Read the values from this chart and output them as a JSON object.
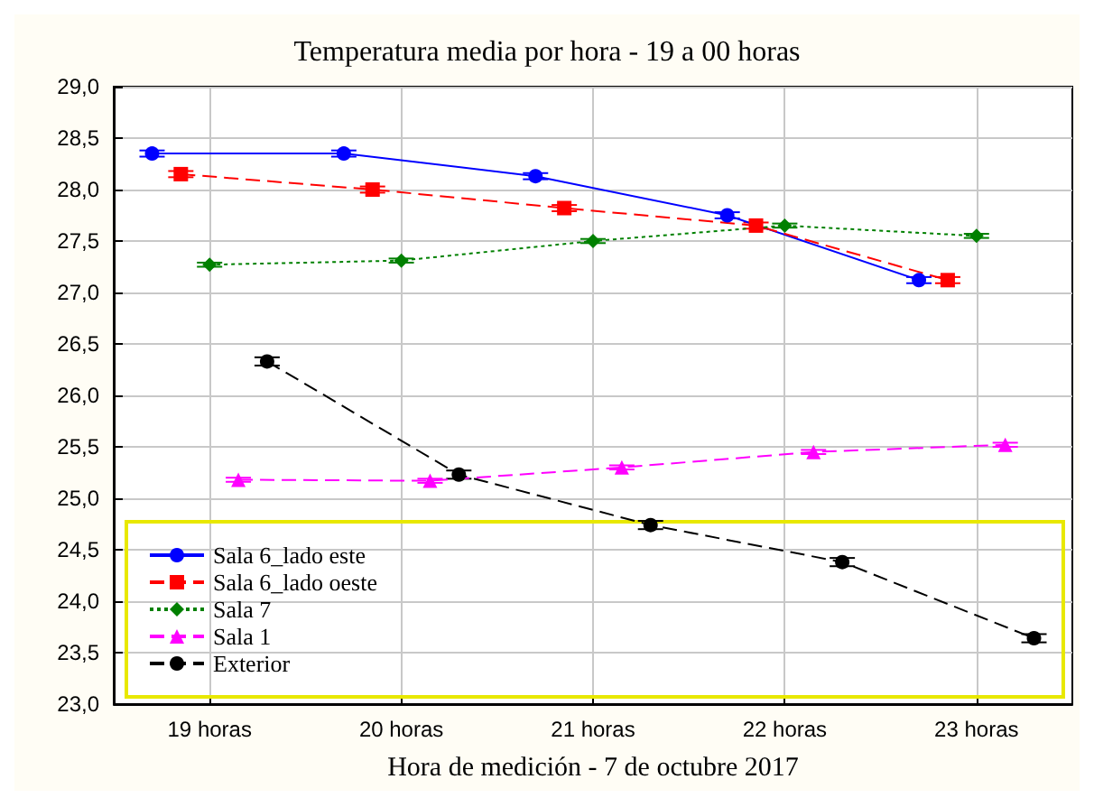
{
  "chart_data": {
    "type": "line",
    "title": "Temperatura media por hora - 19 a 00 horas",
    "xlabel": "Hora de medición - 7 de octubre 2017",
    "xlim": [
      18.5,
      23.5
    ],
    "xticks": [
      {
        "value": 19,
        "label": "19 horas"
      },
      {
        "value": 20,
        "label": "20 horas"
      },
      {
        "value": 21,
        "label": "21 horas"
      },
      {
        "value": 22,
        "label": "22 horas"
      },
      {
        "value": 23,
        "label": "23 horas"
      }
    ],
    "ylim": [
      23,
      29
    ],
    "yticks": [
      {
        "value": 23,
        "label": "23,0"
      },
      {
        "value": 23.5,
        "label": "23,5"
      },
      {
        "value": 24,
        "label": "24,0"
      },
      {
        "value": 24.5,
        "label": "24,5"
      },
      {
        "value": 25,
        "label": "25,0"
      },
      {
        "value": 25.5,
        "label": "25,5"
      },
      {
        "value": 26,
        "label": "26,0"
      },
      {
        "value": 26.5,
        "label": "26,5"
      },
      {
        "value": 27,
        "label": "27,0"
      },
      {
        "value": 27.5,
        "label": "27,5"
      },
      {
        "value": 28,
        "label": "28,0"
      },
      {
        "value": 28.5,
        "label": "28,5"
      },
      {
        "value": 29,
        "label": "29,0"
      }
    ],
    "grid": true,
    "legend": "bottom left",
    "series": [
      {
        "name": "Sala 6_lado este",
        "color": "#0000ff",
        "marker": "circle",
        "line_style": "solid",
        "x": [
          18.7,
          19.7,
          20.7,
          21.7,
          22.7
        ],
        "values": [
          28.35,
          28.35,
          28.13,
          27.75,
          27.12
        ],
        "errors": [
          0.03,
          0.03,
          0.03,
          0.03,
          0.03
        ]
      },
      {
        "name": "Sala 6_lado oeste",
        "color": "#ff0000",
        "marker": "square",
        "line_style": "dashed",
        "x": [
          18.85,
          19.85,
          20.85,
          21.85,
          22.85
        ],
        "values": [
          28.15,
          28.0,
          27.82,
          27.65,
          27.12
        ],
        "errors": [
          0.03,
          0.03,
          0.03,
          0.03,
          0.03
        ]
      },
      {
        "name": "Sala 7",
        "color": "#008000",
        "marker": "diamond",
        "line_style": "dotted",
        "x": [
          19,
          20,
          21,
          22,
          23
        ],
        "values": [
          27.27,
          27.31,
          27.5,
          27.65,
          27.55
        ],
        "errors": [
          0.02,
          0.02,
          0.02,
          0.02,
          0.02
        ]
      },
      {
        "name": "Sala 1",
        "color": "#ff00ff",
        "marker": "triangle",
        "line_style": "dashed",
        "x": [
          19.15,
          20.15,
          21.15,
          22.15,
          23.15
        ],
        "values": [
          25.18,
          25.17,
          25.3,
          25.45,
          25.52
        ],
        "errors": [
          0.02,
          0.02,
          0.02,
          0.02,
          0.02
        ]
      },
      {
        "name": "Exterior",
        "color": "#000000",
        "marker": "circle",
        "line_style": "dashed",
        "x": [
          19.3,
          20.3,
          21.3,
          22.3,
          23.3
        ],
        "values": [
          26.33,
          25.23,
          24.74,
          24.38,
          23.64
        ],
        "errors": [
          0.04,
          0.04,
          0.04,
          0.04,
          0.04
        ]
      }
    ]
  }
}
